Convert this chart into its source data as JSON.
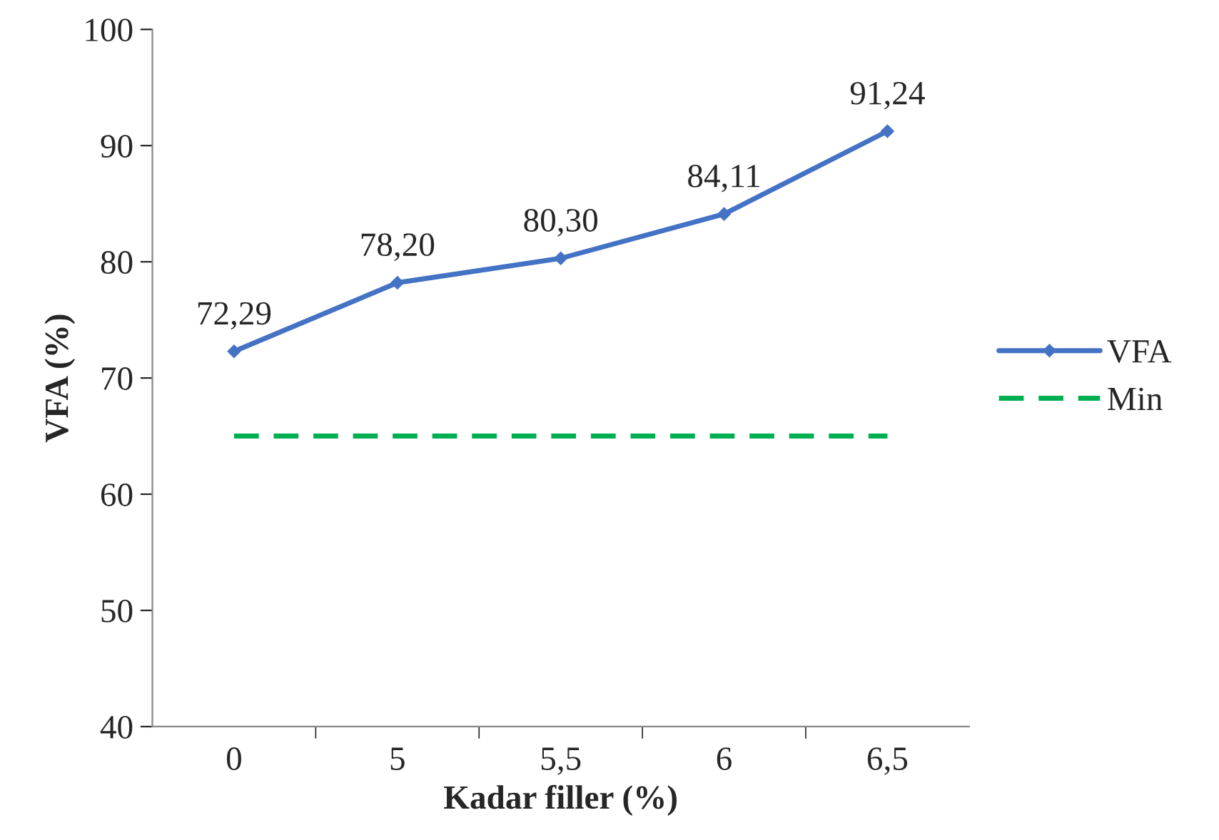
{
  "chart_data": {
    "type": "line",
    "xlabel": "Kadar filler (%)",
    "ylabel": "VFA (%)",
    "categories": [
      "0",
      "5",
      "5,5",
      "6",
      "6,5"
    ],
    "series": [
      {
        "name": "VFA",
        "color": "#4472c4",
        "values": [
          72.29,
          78.2,
          80.3,
          84.11,
          91.24
        ],
        "marker": "diamond",
        "line_style": "solid",
        "value_labels": [
          "72,29",
          "78,20",
          "80,30",
          "84,11",
          "91,24"
        ]
      },
      {
        "name": "Min",
        "color": "#00b050",
        "values": [
          65,
          65,
          65,
          65,
          65
        ],
        "marker": "none",
        "line_style": "dashed"
      }
    ],
    "ylim": [
      40,
      100
    ],
    "yticks": [
      40,
      50,
      60,
      70,
      80,
      90,
      100
    ],
    "grid": false,
    "legend": "right"
  }
}
